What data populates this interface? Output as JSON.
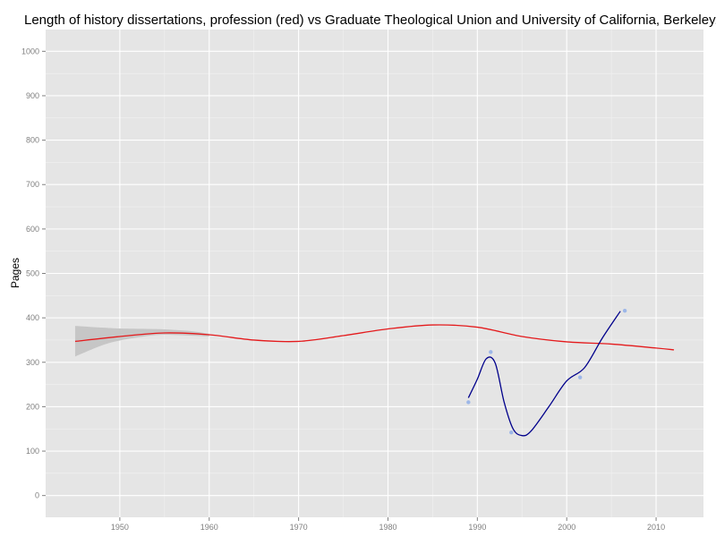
{
  "chart_data": {
    "type": "line",
    "title": "Length of history dissertations, profession (red) vs Graduate Theological Union and University of California, Berkeley. (blue",
    "xlabel": "",
    "ylabel": "Pages",
    "xlim": [
      1941.7,
      2015.3
    ],
    "ylim": [
      -49,
      1049
    ],
    "xticks": [
      1950,
      1960,
      1970,
      1980,
      1990,
      2000,
      2010
    ],
    "yticks": [
      0,
      100,
      200,
      300,
      400,
      500,
      600,
      700,
      800,
      900,
      1000
    ],
    "grid": true,
    "colors": {
      "panel": "#e5e5e5",
      "grid_major": "#ffffff",
      "profession": "#e41a1c",
      "ribbon": "#c4c4c4",
      "institution_line": "#00008b",
      "institution_points": "#9db7e8"
    },
    "series": [
      {
        "kind": "smooth",
        "color": "#e41a1c",
        "x": [
          1945,
          1950,
          1955,
          1960,
          1965,
          1970,
          1975,
          1980,
          1985,
          1990,
          1995,
          2000,
          2005,
          2010,
          2012
        ],
        "values": [
          347,
          358,
          366,
          362,
          350,
          347,
          360,
          375,
          384,
          379,
          358,
          346,
          341,
          332,
          328
        ]
      },
      {
        "kind": "ribbon",
        "color": "#c4c4c4",
        "x": [
          1945,
          1948,
          1950,
          1953,
          1955,
          1958,
          1960
        ],
        "upper": [
          382,
          378,
          376,
          375,
          374,
          370,
          364
        ],
        "lower": [
          313,
          338,
          349,
          359,
          362,
          360,
          358
        ]
      },
      {
        "kind": "smooth",
        "color": "#00008b",
        "x": [
          1989,
          1990,
          1991,
          1992,
          1993,
          1994,
          1995,
          1996,
          1998,
          2000,
          2002,
          2004,
          2006
        ],
        "values": [
          220,
          262,
          308,
          298,
          210,
          150,
          135,
          145,
          200,
          258,
          288,
          355,
          415
        ]
      },
      {
        "kind": "points",
        "color": "#9db7e8",
        "x": [
          1989,
          1991.5,
          1993.8,
          2001.5,
          2006.5
        ],
        "values": [
          210,
          323,
          142,
          266,
          416
        ]
      }
    ]
  }
}
